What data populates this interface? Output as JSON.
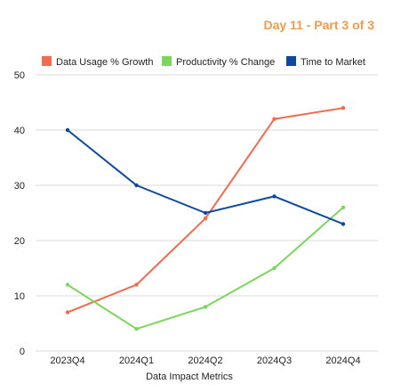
{
  "header": {
    "badge": "Day 11 - Part 3 of 3",
    "badge_color": "#f59a4c"
  },
  "chart_data": {
    "type": "line",
    "categories": [
      "2023Q4",
      "2024Q1",
      "2024Q2",
      "2024Q3",
      "2024Q4"
    ],
    "series": [
      {
        "name": "Data Usage % Growth",
        "color": "#f26a4f",
        "values": [
          7,
          12,
          24,
          42,
          44
        ]
      },
      {
        "name": "Productivity % Change",
        "color": "#7bd65c",
        "values": [
          12,
          4,
          8,
          15,
          26
        ]
      },
      {
        "name": "Time to Market",
        "color": "#0b48a0",
        "values": [
          40,
          30,
          25,
          28,
          23
        ]
      }
    ],
    "title": "",
    "xlabel": "Data Impact Metrics",
    "ylabel": "",
    "ylim": [
      0,
      50
    ],
    "yticks": [
      0,
      10,
      20,
      30,
      40,
      50
    ],
    "grid": true,
    "legend_position": "top"
  }
}
